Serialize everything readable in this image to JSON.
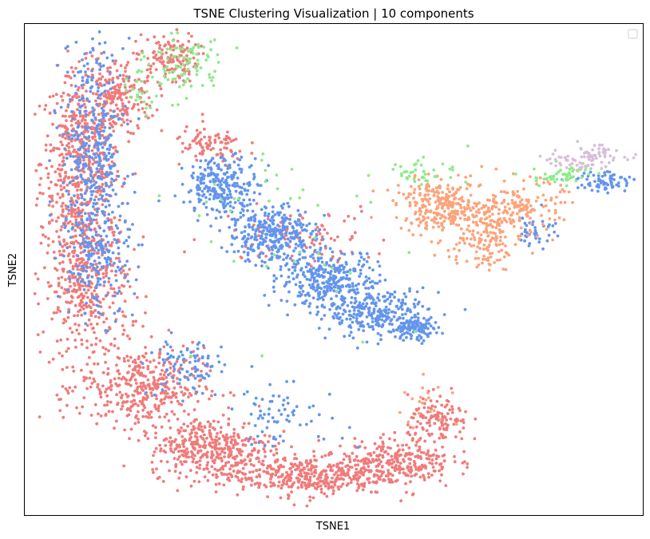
{
  "chart_data": {
    "type": "scatter",
    "title": "TSNE Clustering Visualization | 10 components",
    "xlabel": "TSNE1",
    "ylabel": "TSNE2",
    "xlim": [
      0,
      100
    ],
    "ylim": [
      0,
      100
    ],
    "ticks": "none",
    "grid": false,
    "legend": {
      "placement": "top-right",
      "entries": []
    },
    "colors": {
      "salmon_red": "#f07b7b",
      "cornflower_blue": "#6495ed",
      "light_salmon": "#fba47c",
      "light_green": "#8eea8a",
      "thistle": "#d8bfd8"
    },
    "series": [
      {
        "color": "#f07b7b",
        "clusters": [
          {
            "x": 9,
            "y": 72,
            "sx": 3.2,
            "sy": 9,
            "n": 520
          },
          {
            "x": 15,
            "y": 85,
            "sx": 3,
            "sy": 4,
            "n": 200
          },
          {
            "x": 23,
            "y": 93,
            "sx": 2.5,
            "sy": 2.5,
            "n": 130
          },
          {
            "x": 10,
            "y": 47,
            "sx": 3.5,
            "sy": 8,
            "n": 420
          },
          {
            "x": 19,
            "y": 26,
            "sx": 5,
            "sy": 4,
            "n": 380
          },
          {
            "x": 30,
            "y": 14,
            "sx": 5,
            "sy": 3,
            "n": 380
          },
          {
            "x": 45,
            "y": 8,
            "sx": 7,
            "sy": 2,
            "n": 420
          },
          {
            "x": 60,
            "y": 11,
            "sx": 4.5,
            "sy": 2.2,
            "n": 260
          },
          {
            "x": 67,
            "y": 19,
            "sx": 2.5,
            "sy": 2.5,
            "n": 130
          },
          {
            "x": 30,
            "y": 75,
            "sx": 3,
            "sy": 2,
            "n": 90
          },
          {
            "x": 45,
            "y": 57,
            "sx": 7,
            "sy": 3,
            "n": 90
          }
        ]
      },
      {
        "color": "#6495ed",
        "clusters": [
          {
            "x": 11,
            "y": 74,
            "sx": 2.5,
            "sy": 11,
            "n": 380
          },
          {
            "x": 12,
            "y": 52,
            "sx": 2.5,
            "sy": 6,
            "n": 180
          },
          {
            "x": 32,
            "y": 67,
            "sx": 3,
            "sy": 3,
            "n": 250
          },
          {
            "x": 40,
            "y": 57,
            "sx": 3.5,
            "sy": 3,
            "n": 320
          },
          {
            "x": 49,
            "y": 48,
            "sx": 4,
            "sy": 3,
            "n": 320
          },
          {
            "x": 57,
            "y": 41,
            "sx": 4,
            "sy": 2.5,
            "n": 260
          },
          {
            "x": 63,
            "y": 38,
            "sx": 2,
            "sy": 1.2,
            "n": 120
          },
          {
            "x": 26,
            "y": 30,
            "sx": 3,
            "sy": 3,
            "n": 90
          },
          {
            "x": 42,
            "y": 20,
            "sx": 5,
            "sy": 3,
            "n": 70
          },
          {
            "x": 94,
            "y": 68,
            "sx": 2.3,
            "sy": 1.1,
            "n": 70
          },
          {
            "x": 83,
            "y": 58,
            "sx": 1.5,
            "sy": 2.0,
            "n": 40
          }
        ]
      },
      {
        "color": "#fba47c",
        "clusters": [
          {
            "x": 67,
            "y": 63,
            "sx": 3.5,
            "sy": 2.5,
            "n": 260
          },
          {
            "x": 74,
            "y": 58,
            "sx": 3,
            "sy": 4,
            "n": 200
          },
          {
            "x": 81,
            "y": 63,
            "sx": 3,
            "sy": 2.5,
            "n": 130
          },
          {
            "x": 65,
            "y": 23,
            "sx": 2.5,
            "sy": 2.5,
            "n": 20
          }
        ]
      },
      {
        "color": "#8eea8a",
        "clusters": [
          {
            "x": 26,
            "y": 92,
            "sx": 3,
            "sy": 3.5,
            "n": 90
          },
          {
            "x": 18,
            "y": 86,
            "sx": 2,
            "sy": 2,
            "n": 25
          },
          {
            "x": 87,
            "y": 69,
            "sx": 2.5,
            "sy": 1.2,
            "n": 50
          },
          {
            "x": 65,
            "y": 70,
            "sx": 3.5,
            "sy": 1.2,
            "n": 40
          },
          {
            "x": 40,
            "y": 60,
            "sx": 10,
            "sy": 10,
            "n": 40
          }
        ]
      },
      {
        "color": "#d8bfd8",
        "clusters": [
          {
            "x": 92,
            "y": 73,
            "sx": 2.5,
            "sy": 1.2,
            "n": 70
          },
          {
            "x": 87,
            "y": 72,
            "sx": 1.5,
            "sy": 0.8,
            "n": 20
          }
        ]
      }
    ]
  }
}
